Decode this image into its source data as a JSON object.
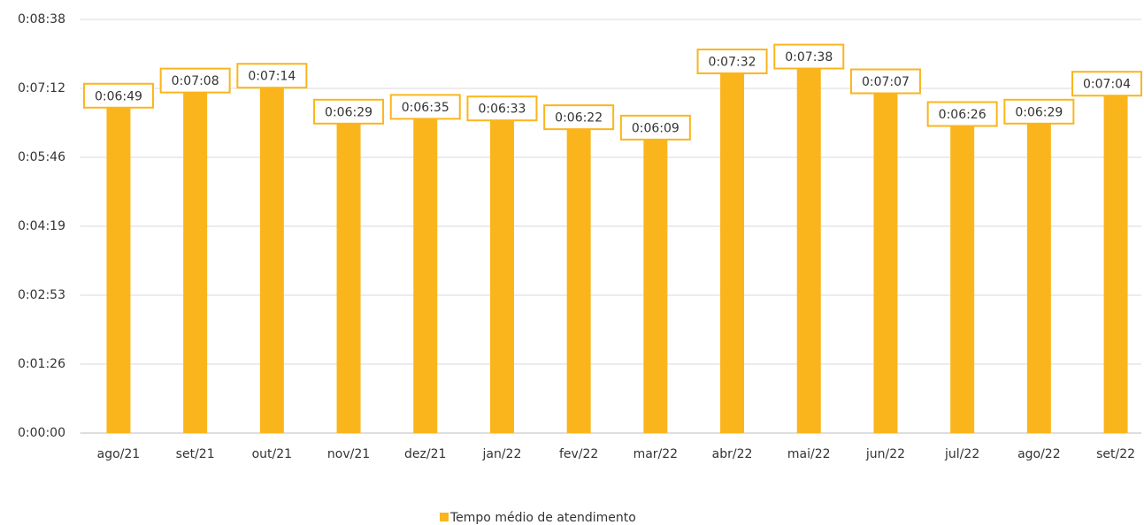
{
  "chart_data": {
    "type": "bar",
    "categories": [
      "ago/21",
      "set/21",
      "out/21",
      "nov/21",
      "dez/21",
      "jan/22",
      "fev/22",
      "mar/22",
      "abr/22",
      "mai/22",
      "jun/22",
      "jul/22",
      "ago/22",
      "set/22"
    ],
    "series": [
      {
        "name": "Tempo médio de atendimento",
        "color": "#fbb51c",
        "values": [
          409,
          428,
          434,
          389,
          395,
          393,
          382,
          369,
          452,
          458,
          427,
          386,
          389,
          424
        ],
        "value_labels": [
          "0:06:49",
          "0:07:08",
          "0:07:14",
          "0:06:29",
          "0:06:35",
          "0:06:33",
          "0:06:22",
          "0:06:09",
          "0:07:32",
          "0:07:38",
          "0:07:07",
          "0:06:26",
          "0:06:29",
          "0:07:04"
        ]
      }
    ],
    "ylim": [
      0,
      518.4
    ],
    "yticks": [
      {
        "value": 0,
        "label": "0:00:00"
      },
      {
        "value": 86.4,
        "label": "0:01:26"
      },
      {
        "value": 172.8,
        "label": "0:02:53"
      },
      {
        "value": 259.2,
        "label": "0:04:19"
      },
      {
        "value": 345.6,
        "label": "0:05:46"
      },
      {
        "value": 432,
        "label": "0:07:12"
      },
      {
        "value": 518.4,
        "label": "0:08:38"
      }
    ],
    "grid": true,
    "legend": "bottom"
  }
}
